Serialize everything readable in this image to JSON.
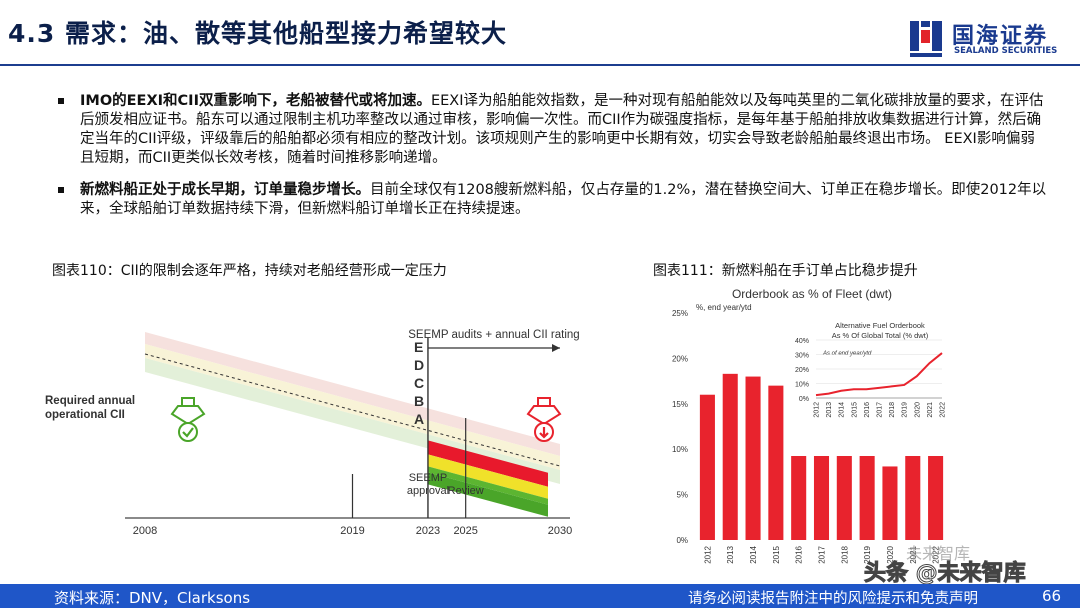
{
  "header": {
    "title": "4.3 需求：油、散等其他船型接力希望较大",
    "logo_cn": "国海证券",
    "logo_en": "SEALAND SECURITIES",
    "logo_icon": "sealand-logo-icon",
    "accent_color": "#1c3e8f"
  },
  "bullets": [
    {
      "bold": "IMO的EEXI和CII双重影响下，老船被替代或将加速。",
      "text": "EEXI译为船舶能效指数，是一种对现有船舶能效以及每吨英里的二氧化碳排放量的要求，在评估后颁发相应证书。船东可以通过限制主机功率整改以通过审核，影响偏一次性。而CII作为碳强度指标，是每年基于船舶排放收集数据进行计算，然后确定当年的CII评级，评级靠后的船舶都必须有相应的整改计划。该项规则产生的影响更中长期有效，切实会导致老龄船舶最终退出市场。 EEXI影响偏弱且短期，而CII更类似长效考核，随着时间推移影响递增。"
    },
    {
      "bold": "新燃料船正处于成长早期，订单量稳步增长。",
      "text": "目前全球仅有1208艘新燃料船，仅占存量的1.2%，潜在替换空间大、订单正在稳步增长。即使2012年以来，全球船舶订单数据持续下滑，但新燃料船订单增长正在持续提速。"
    }
  ],
  "figure110": {
    "caption": "图表110：CII的限制会逐年严格，持续对老船经营形成一定压力"
  },
  "figure111": {
    "caption": "图表111：新燃料船在手订单占比稳步提升"
  },
  "chart_data": [
    {
      "type": "area",
      "title": "",
      "left_label_line1": "Required annual",
      "left_label_line2": "operational CII",
      "x_ticks": [
        2008,
        2019,
        2023,
        2025,
        2030
      ],
      "xlim": [
        2008,
        2030
      ],
      "ratings": [
        "E",
        "D",
        "C",
        "B",
        "A"
      ],
      "band_colors": {
        "E": "#f3d9d6",
        "D": "#e8192c",
        "C": "#f0e12a",
        "B": "#5cb531",
        "A": "#4aa529"
      },
      "annotations": {
        "audits": "SEEMP audits + annual CII rating",
        "seemp_line1": "SEEMP",
        "seemp_line2": "approval",
        "review": "Review"
      },
      "icons": [
        "compliant-ship-icon",
        "non-compliant-ship-icon"
      ]
    },
    {
      "type": "bar",
      "title": "Orderbook as % of Fleet (dwt)",
      "subtitle": "%, end year/ytd",
      "categories": [
        "2012",
        "2013",
        "2014",
        "2015",
        "2016",
        "2017",
        "2018",
        "2019",
        "2020",
        "2021",
        "2022"
      ],
      "values": [
        16.0,
        18.3,
        18.0,
        17.0,
        12.0,
        10.9,
        11.0,
        9.3,
        8.1,
        9.9,
        9.8
      ],
      "ylim": [
        0,
        25
      ],
      "yticks": [
        "0%",
        "5%",
        "10%",
        "15%",
        "20%",
        "25%"
      ],
      "bar_color": "#e8232d",
      "inset": {
        "type": "line",
        "title_line1": "Alternative Fuel Orderbook",
        "title_line2": "As % Of Global Total (% dwt)",
        "subtitle": "As of end year/ytd",
        "x": [
          "2012",
          "2013",
          "2014",
          "2015",
          "2016",
          "2017",
          "2018",
          "2019",
          "2020",
          "2021",
          "2022"
        ],
        "values": [
          2,
          3,
          5,
          6,
          6,
          7,
          8,
          9,
          15,
          24,
          31
        ],
        "ylim": [
          0,
          40
        ],
        "yticks": [
          "0%",
          "10%",
          "20%",
          "30%",
          "40%"
        ],
        "line_color": "#e8232d"
      }
    }
  ],
  "footer": {
    "source": "资料来源：DNV，Clarksons",
    "disclaimer": "请务必阅读报告附注中的风险提示和免责声明",
    "page": "66",
    "bg_color": "#1f56c8"
  },
  "watermark": {
    "text": "头条 @未来智库",
    "ring_text": "未来智库"
  }
}
